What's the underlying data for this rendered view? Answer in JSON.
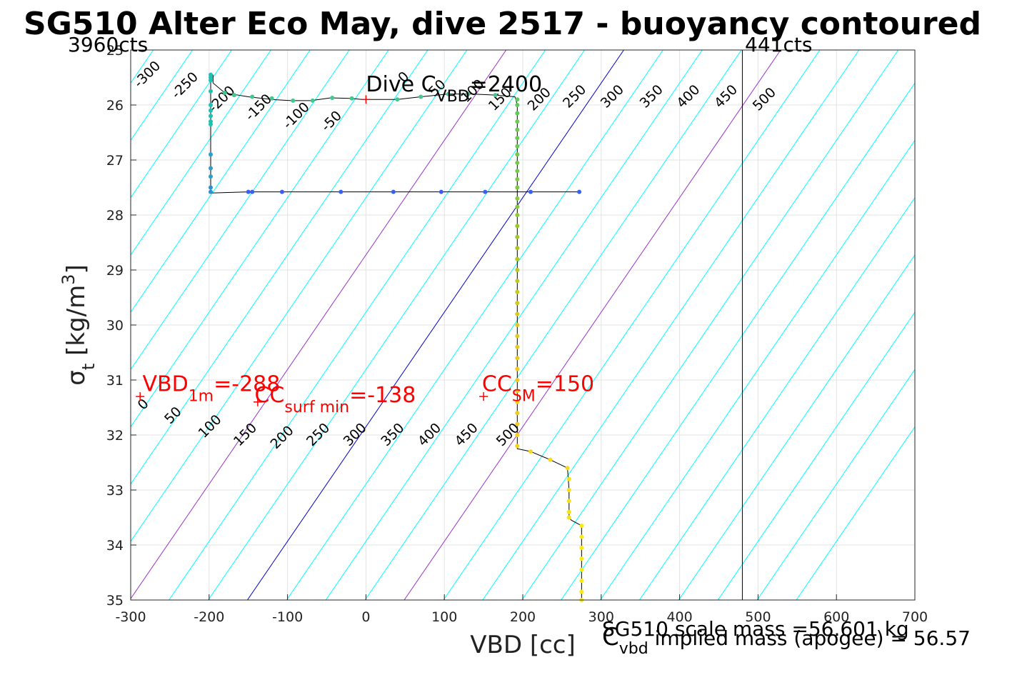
{
  "chart_data": {
    "type": "scatter",
    "title": "SG510 Alter Eco May, dive 2517 - buoyancy contoured",
    "xlabel": "VBD [cc]",
    "ylabel": "σ_t [kg/m^3]",
    "ylabel_parts": {
      "sym": "σ",
      "sub": "t",
      "units_pre": "[kg/m",
      "units_sup": "3",
      "units_post": "]"
    },
    "xlim": [
      -300,
      700
    ],
    "ylim": [
      25,
      35
    ],
    "y_reversed": true,
    "grid": true,
    "xticks": [
      -300,
      -200,
      -100,
      0,
      100,
      200,
      300,
      400,
      500,
      600,
      700
    ],
    "xtick_labels": [
      "-300",
      "-200",
      "-100",
      "0",
      "100",
      "200",
      "300",
      "400",
      "500",
      "600",
      "700"
    ],
    "yticks": [
      25,
      26,
      27,
      28,
      29,
      30,
      31,
      32,
      33,
      34,
      35
    ],
    "ytick_labels": [
      "25",
      "26",
      "27",
      "28",
      "29",
      "30",
      "31",
      "32",
      "33",
      "34",
      "35"
    ],
    "left_counts_label": "3960cts",
    "right_counts_label": "441cts",
    "vbd_limit_line_x": 480,
    "contours": {
      "slope_vbd_per_sigma": 48,
      "spacing": 50,
      "colors": {
        "default": "#00ffff",
        "zero": "#0000cd",
        "highlight": "#9932cc"
      },
      "highlight_levels": [
        -150,
        200
      ],
      "upper_labels": [
        {
          "level": -300,
          "text": "-300",
          "x": -275,
          "y": 25.5
        },
        {
          "level": -250,
          "text": "-250",
          "x": -227,
          "y": 25.7
        },
        {
          "level": -200,
          "text": "-200",
          "x": -180,
          "y": 25.95
        },
        {
          "level": -150,
          "text": "-150",
          "x": -133,
          "y": 26.1
        },
        {
          "level": -100,
          "text": "-100",
          "x": -85,
          "y": 26.25
        },
        {
          "level": -50,
          "text": "-50",
          "x": -40,
          "y": 26.35
        },
        {
          "level": 0,
          "text": "0",
          "x": 52,
          "y": 25.55
        },
        {
          "level": 50,
          "text": "50",
          "x": 95,
          "y": 25.75
        },
        {
          "level": 100,
          "text": "100",
          "x": 140,
          "y": 25.8
        },
        {
          "level": 150,
          "text": "150",
          "x": 175,
          "y": 25.95
        },
        {
          "level": 200,
          "text": "200",
          "x": 225,
          "y": 25.95
        },
        {
          "level": 250,
          "text": "250",
          "x": 270,
          "y": 25.9
        },
        {
          "level": 300,
          "text": "300",
          "x": 318,
          "y": 25.9
        },
        {
          "level": 350,
          "text": "350",
          "x": 368,
          "y": 25.9
        },
        {
          "level": 400,
          "text": "400",
          "x": 415,
          "y": 25.9
        },
        {
          "level": 450,
          "text": "450",
          "x": 463,
          "y": 25.9
        },
        {
          "level": 500,
          "text": "500",
          "x": 512,
          "y": 25.95
        }
      ],
      "lower_labels": [
        {
          "level": 0,
          "text": "0",
          "x": -280,
          "y": 31.5
        },
        {
          "level": 50,
          "text": "50",
          "x": -242,
          "y": 31.7
        },
        {
          "level": 100,
          "text": "100",
          "x": -195,
          "y": 31.9
        },
        {
          "level": 150,
          "text": "150",
          "x": -150,
          "y": 32.05
        },
        {
          "level": 200,
          "text": "200",
          "x": -103,
          "y": 32.1
        },
        {
          "level": 250,
          "text": "250",
          "x": -57,
          "y": 32.05
        },
        {
          "level": 300,
          "text": "300",
          "x": -10,
          "y": 32.05
        },
        {
          "level": 350,
          "text": "350",
          "x": 38,
          "y": 32.05
        },
        {
          "level": 400,
          "text": "400",
          "x": 85,
          "y": 32.05
        },
        {
          "level": 450,
          "text": "450",
          "x": 132,
          "y": 32.05
        },
        {
          "level": 500,
          "text": "500",
          "x": 185,
          "y": 32.05
        }
      ]
    },
    "series": [
      {
        "type": "line",
        "color": "#000000",
        "points": [
          [
            -195,
            25.45
          ],
          [
            -195,
            25.6
          ],
          [
            -180,
            25.78
          ],
          [
            -150,
            25.85
          ],
          [
            -120,
            25.9
          ],
          [
            -95,
            25.92
          ],
          [
            -70,
            25.92
          ],
          [
            -45,
            25.87
          ],
          [
            -20,
            25.88
          ],
          [
            -5,
            25.9
          ],
          [
            10,
            25.9
          ],
          [
            40,
            25.9
          ],
          [
            70,
            25.85
          ],
          [
            105,
            25.8
          ],
          [
            135,
            25.8
          ],
          [
            165,
            25.82
          ],
          [
            190,
            25.85
          ],
          [
            193,
            26.0
          ],
          [
            193,
            26.3
          ],
          [
            193,
            27.0
          ],
          [
            193,
            28.0
          ],
          [
            193,
            29.0
          ],
          [
            193,
            30.0
          ],
          [
            193,
            31.0
          ],
          [
            193,
            32.0
          ],
          [
            193,
            32.25
          ],
          [
            210,
            32.3
          ],
          [
            235,
            32.45
          ],
          [
            257,
            32.6
          ],
          [
            259,
            33.0
          ],
          [
            259,
            33.5
          ],
          [
            262,
            33.55
          ],
          [
            275,
            33.65
          ],
          [
            275,
            34.0
          ],
          [
            275,
            34.5
          ],
          [
            275,
            35.0
          ]
        ]
      },
      {
        "type": "line",
        "color": "#000000",
        "points": [
          [
            -198,
            25.5
          ],
          [
            -198,
            26.5
          ],
          [
            -198,
            27.0
          ],
          [
            -198,
            27.6
          ],
          [
            -150,
            27.58
          ],
          [
            -100,
            27.58
          ],
          [
            0,
            27.58
          ],
          [
            100,
            27.58
          ],
          [
            200,
            27.58
          ],
          [
            273,
            27.58
          ]
        ]
      }
    ],
    "points": [
      {
        "x": -198,
        "y": 25.45,
        "color": "#20c0b0"
      },
      {
        "x": -198,
        "y": 25.5,
        "color": "#20c0b0"
      },
      {
        "x": -198,
        "y": 25.55,
        "color": "#20c0b0"
      },
      {
        "x": -198,
        "y": 25.75,
        "color": "#20c0b0"
      },
      {
        "x": -198,
        "y": 26.0,
        "color": "#20c0b0"
      },
      {
        "x": -198,
        "y": 26.1,
        "color": "#20c0b0"
      },
      {
        "x": -198,
        "y": 26.2,
        "color": "#20c0b0"
      },
      {
        "x": -198,
        "y": 26.3,
        "color": "#20c0b0"
      },
      {
        "x": -198,
        "y": 26.35,
        "color": "#20c0b0"
      },
      {
        "x": -198,
        "y": 26.9,
        "color": "#2aa0c8"
      },
      {
        "x": -198,
        "y": 27.15,
        "color": "#2aa0c8"
      },
      {
        "x": -198,
        "y": 27.3,
        "color": "#2aa0c8"
      },
      {
        "x": -198,
        "y": 27.5,
        "color": "#3090d0"
      },
      {
        "x": -198,
        "y": 27.58,
        "color": "#3090d0"
      },
      {
        "x": -180,
        "y": 25.78,
        "color": "#40c890"
      },
      {
        "x": -168,
        "y": 25.82,
        "color": "#40c890"
      },
      {
        "x": -145,
        "y": 25.85,
        "color": "#40c890"
      },
      {
        "x": -120,
        "y": 25.88,
        "color": "#40c890"
      },
      {
        "x": -93,
        "y": 25.92,
        "color": "#40c890"
      },
      {
        "x": -68,
        "y": 25.92,
        "color": "#40c890"
      },
      {
        "x": -43,
        "y": 25.87,
        "color": "#40c890"
      },
      {
        "x": -18,
        "y": 25.88,
        "color": "#40c890"
      },
      {
        "x": 40,
        "y": 25.9,
        "color": "#40c890"
      },
      {
        "x": 70,
        "y": 25.85,
        "color": "#40c890"
      },
      {
        "x": 105,
        "y": 25.8,
        "color": "#40c890"
      },
      {
        "x": 130,
        "y": 25.8,
        "color": "#40c890"
      },
      {
        "x": 165,
        "y": 25.82,
        "color": "#40c890"
      },
      {
        "x": -150,
        "y": 27.58,
        "color": "#3a60f0"
      },
      {
        "x": -145,
        "y": 27.58,
        "color": "#3a60f0"
      },
      {
        "x": -107,
        "y": 27.58,
        "color": "#3a60f0"
      },
      {
        "x": -32,
        "y": 27.58,
        "color": "#3a60f0"
      },
      {
        "x": 35,
        "y": 27.58,
        "color": "#3a60f0"
      },
      {
        "x": 96,
        "y": 27.58,
        "color": "#3a60f0"
      },
      {
        "x": 152,
        "y": 27.58,
        "color": "#3a60f0"
      },
      {
        "x": 210,
        "y": 27.58,
        "color": "#3a60f0"
      },
      {
        "x": 272,
        "y": 27.58,
        "color": "#3a60f0"
      },
      {
        "x": 193,
        "y": 25.9,
        "color": "#60c860"
      },
      {
        "x": 193,
        "y": 26.0,
        "color": "#60c860"
      },
      {
        "x": 193,
        "y": 26.15,
        "color": "#60c860"
      },
      {
        "x": 193,
        "y": 26.3,
        "color": "#70c858"
      },
      {
        "x": 193,
        "y": 26.45,
        "color": "#70c858"
      },
      {
        "x": 193,
        "y": 26.6,
        "color": "#70c858"
      },
      {
        "x": 193,
        "y": 26.75,
        "color": "#70c858"
      },
      {
        "x": 193,
        "y": 26.9,
        "color": "#78c850"
      },
      {
        "x": 193,
        "y": 27.05,
        "color": "#78c850"
      },
      {
        "x": 193,
        "y": 27.2,
        "color": "#78c850"
      },
      {
        "x": 193,
        "y": 27.35,
        "color": "#80c848"
      },
      {
        "x": 193,
        "y": 27.5,
        "color": "#80c848"
      },
      {
        "x": 193,
        "y": 27.7,
        "color": "#88c840"
      },
      {
        "x": 193,
        "y": 27.85,
        "color": "#88c840"
      },
      {
        "x": 193,
        "y": 28.0,
        "color": "#90c838"
      },
      {
        "x": 193,
        "y": 28.2,
        "color": "#98c830"
      },
      {
        "x": 193,
        "y": 28.4,
        "color": "#a0c830"
      },
      {
        "x": 193,
        "y": 28.6,
        "color": "#a8c828"
      },
      {
        "x": 193,
        "y": 28.8,
        "color": "#b0c828"
      },
      {
        "x": 193,
        "y": 29.0,
        "color": "#b8c828"
      },
      {
        "x": 193,
        "y": 29.2,
        "color": "#c0c828"
      },
      {
        "x": 193,
        "y": 29.4,
        "color": "#c8c828"
      },
      {
        "x": 193,
        "y": 29.6,
        "color": "#d0c828"
      },
      {
        "x": 193,
        "y": 29.8,
        "color": "#d8c828"
      },
      {
        "x": 193,
        "y": 30.0,
        "color": "#e0c828"
      },
      {
        "x": 193,
        "y": 30.2,
        "color": "#e0c828"
      },
      {
        "x": 193,
        "y": 30.4,
        "color": "#e8c828"
      },
      {
        "x": 193,
        "y": 30.6,
        "color": "#e8c828"
      },
      {
        "x": 193,
        "y": 30.8,
        "color": "#f0c828"
      },
      {
        "x": 193,
        "y": 31.0,
        "color": "#f0c828"
      },
      {
        "x": 193,
        "y": 31.2,
        "color": "#f0c828"
      },
      {
        "x": 193,
        "y": 31.4,
        "color": "#f0c828"
      },
      {
        "x": 193,
        "y": 31.6,
        "color": "#f0c828"
      },
      {
        "x": 193,
        "y": 31.8,
        "color": "#f0c828"
      },
      {
        "x": 193,
        "y": 32.0,
        "color": "#f5d020"
      },
      {
        "x": 193,
        "y": 32.2,
        "color": "#f5d020"
      },
      {
        "x": 210,
        "y": 32.3,
        "color": "#f5d820"
      },
      {
        "x": 235,
        "y": 32.45,
        "color": "#f5d820"
      },
      {
        "x": 257,
        "y": 32.6,
        "color": "#f5d820"
      },
      {
        "x": 259,
        "y": 32.8,
        "color": "#f5e020"
      },
      {
        "x": 259,
        "y": 33.0,
        "color": "#f5e020"
      },
      {
        "x": 259,
        "y": 33.2,
        "color": "#f5e020"
      },
      {
        "x": 259,
        "y": 33.4,
        "color": "#f5e020"
      },
      {
        "x": 259,
        "y": 33.5,
        "color": "#f5e020"
      },
      {
        "x": 275,
        "y": 33.65,
        "color": "#f8e818"
      },
      {
        "x": 275,
        "y": 33.85,
        "color": "#f8e818"
      },
      {
        "x": 275,
        "y": 34.05,
        "color": "#f8e818"
      },
      {
        "x": 275,
        "y": 34.25,
        "color": "#f8e818"
      },
      {
        "x": 275,
        "y": 34.45,
        "color": "#f8e818"
      },
      {
        "x": 275,
        "y": 34.65,
        "color": "#f8e818"
      },
      {
        "x": 275,
        "y": 34.85,
        "color": "#f8e818"
      },
      {
        "x": 275,
        "y": 35.0,
        "color": "#f8e818"
      }
    ],
    "markers": [
      {
        "x": -288,
        "y": 31.3,
        "color": "#ff0000"
      },
      {
        "x": -138,
        "y": 31.4,
        "color": "#ff0000"
      },
      {
        "x": 150,
        "y": 31.3,
        "color": "#ff0000"
      },
      {
        "x": 0,
        "y": 25.9,
        "color": "#ff0000"
      }
    ],
    "annotations": [
      {
        "main": "VBD",
        "sub": "1m",
        "tail": "=-288",
        "x": -285,
        "y": 31.2,
        "color": "#ff0000"
      },
      {
        "main": "CC",
        "sub": "surf min",
        "tail": "=-138",
        "x": -142,
        "y": 31.4,
        "color": "#ff0000"
      },
      {
        "main": "CC",
        "sub": "SM",
        "tail": "=150",
        "x": 148,
        "y": 31.2,
        "color": "#ff0000"
      },
      {
        "main": "Dive C",
        "sub": "VBD",
        "tail": "=2400",
        "x": 0,
        "y": 25.75,
        "color": "#000000"
      }
    ],
    "footer": {
      "line1": "SG510 scale mass =56.601 kg",
      "line2_main": "C",
      "line2_sub": "vbd",
      "line2_tail": " implied mass (apogee) = 56.57"
    }
  }
}
